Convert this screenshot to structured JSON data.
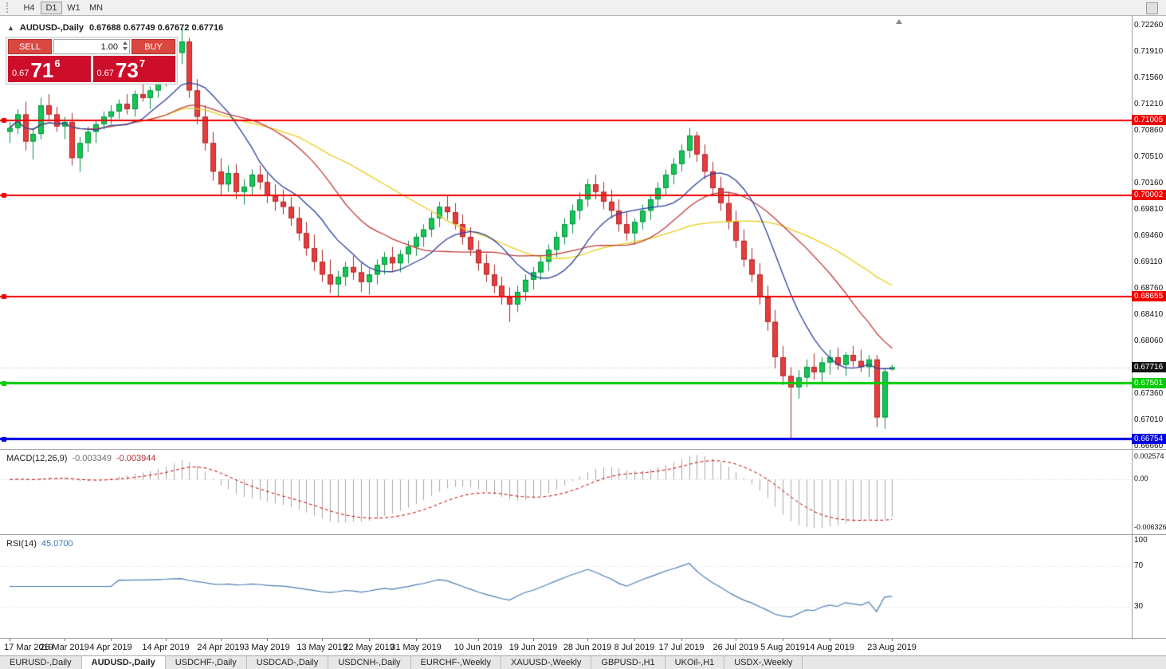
{
  "toolbar": {
    "timeframes": [
      "H4",
      "D1",
      "W1",
      "MN"
    ],
    "active": "D1"
  },
  "chart": {
    "header": {
      "collapse_icon": "▲",
      "symbol": "AUDUSD-,Daily",
      "ohlc": "0.67688 0.67749 0.67672 0.67716"
    },
    "trade_panel": {
      "sell_label": "SELL",
      "buy_label": "BUY",
      "volume": "1.00",
      "sell_price": {
        "small": "0.67",
        "big": "71",
        "sup": "6"
      },
      "buy_price": {
        "small": "0.67",
        "big": "73",
        "sup": "7"
      }
    },
    "view": {
      "price_top": 0.7238,
      "price_bottom": 0.6663
    },
    "price_scale": {
      "ticks": [
        "0.72260",
        "0.71910",
        "0.71560",
        "0.71210",
        "0.70860",
        "0.70510",
        "0.70160",
        "0.69810",
        "0.69460",
        "0.69110",
        "0.68760",
        "0.68410",
        "0.68060",
        "0.67360",
        "0.67010",
        "0.66660"
      ]
    },
    "hlines": [
      {
        "label": "0.71005",
        "price": 0.71005,
        "color": "#f00000",
        "text_color": "#ffffff",
        "width": 2
      },
      {
        "label": "0.70002",
        "price": 0.70002,
        "color": "#f00000",
        "text_color": "#ffffff",
        "width": 2
      },
      {
        "label": "0.68655",
        "price": 0.68655,
        "color": "#f00000",
        "text_color": "#ffffff",
        "width": 2
      },
      {
        "label": "0.67501",
        "price": 0.67501,
        "color": "#00cc00",
        "text_color": "#ffffff",
        "width": 3
      },
      {
        "label": "0.66754",
        "price": 0.66754,
        "color": "#0000e0",
        "text_color": "#ffffff",
        "width": 3
      }
    ],
    "current_price": {
      "value": "0.67716",
      "price": 0.67716,
      "bg": "#141414",
      "line_color": "#9a9a9a"
    }
  },
  "chart_data": {
    "type": "candlestick",
    "symbol": "AUDUSD",
    "timeframe": "Daily",
    "colors": {
      "up": "#12c753",
      "up_border": "#089040",
      "down": "#ea3b3c",
      "down_border": "#aa2a2b"
    },
    "moving_averages": [
      {
        "period": 34,
        "color": "#e9cd18"
      },
      {
        "period": 21,
        "color": "#c23b3b"
      },
      {
        "period": 10,
        "color": "#2b3f9e"
      }
    ],
    "candles": [
      [
        0.7085,
        0.7098,
        0.707,
        0.709
      ],
      [
        0.709,
        0.7115,
        0.7082,
        0.7108
      ],
      [
        0.7108,
        0.7125,
        0.706,
        0.7072
      ],
      [
        0.7072,
        0.709,
        0.7048,
        0.7082
      ],
      [
        0.7082,
        0.713,
        0.7075,
        0.712
      ],
      [
        0.712,
        0.7135,
        0.71,
        0.7108
      ],
      [
        0.7108,
        0.7118,
        0.7085,
        0.7092
      ],
      [
        0.7092,
        0.7105,
        0.7075,
        0.7098
      ],
      [
        0.7098,
        0.711,
        0.704,
        0.705
      ],
      [
        0.705,
        0.7078,
        0.7032,
        0.707
      ],
      [
        0.707,
        0.7092,
        0.7058,
        0.7085
      ],
      [
        0.7085,
        0.71,
        0.707,
        0.7095
      ],
      [
        0.7095,
        0.7112,
        0.7088,
        0.7105
      ],
      [
        0.7105,
        0.712,
        0.7095,
        0.7112
      ],
      [
        0.7112,
        0.7128,
        0.7102,
        0.7122
      ],
      [
        0.7122,
        0.7135,
        0.7108,
        0.7115
      ],
      [
        0.7115,
        0.714,
        0.7105,
        0.7135
      ],
      [
        0.7135,
        0.7155,
        0.7125,
        0.713
      ],
      [
        0.713,
        0.7145,
        0.7115,
        0.714
      ],
      [
        0.714,
        0.716,
        0.713,
        0.7155
      ],
      [
        0.7155,
        0.7175,
        0.7145,
        0.7168
      ],
      [
        0.7168,
        0.7195,
        0.716,
        0.719
      ],
      [
        0.719,
        0.7224,
        0.7175,
        0.7205
      ],
      [
        0.7205,
        0.721,
        0.713,
        0.714
      ],
      [
        0.714,
        0.7155,
        0.7095,
        0.7105
      ],
      [
        0.7105,
        0.712,
        0.706,
        0.707
      ],
      [
        0.707,
        0.7085,
        0.702,
        0.7032
      ],
      [
        0.7032,
        0.705,
        0.7,
        0.7015
      ],
      [
        0.7015,
        0.704,
        0.7005,
        0.703
      ],
      [
        0.703,
        0.7042,
        0.6995,
        0.7005
      ],
      [
        0.7005,
        0.7022,
        0.6988,
        0.7012
      ],
      [
        0.7012,
        0.7035,
        0.7,
        0.7028
      ],
      [
        0.7028,
        0.704,
        0.7008,
        0.7018
      ],
      [
        0.7018,
        0.703,
        0.699,
        0.7
      ],
      [
        0.7,
        0.7015,
        0.698,
        0.6992
      ],
      [
        0.6992,
        0.7008,
        0.6975,
        0.6985
      ],
      [
        0.6985,
        0.6998,
        0.696,
        0.697
      ],
      [
        0.697,
        0.6985,
        0.694,
        0.695
      ],
      [
        0.695,
        0.6965,
        0.692,
        0.693
      ],
      [
        0.693,
        0.6948,
        0.69,
        0.6912
      ],
      [
        0.6912,
        0.6928,
        0.6885,
        0.6895
      ],
      [
        0.6895,
        0.6915,
        0.687,
        0.6882
      ],
      [
        0.6882,
        0.69,
        0.6865,
        0.6892
      ],
      [
        0.6892,
        0.6912,
        0.688,
        0.6905
      ],
      [
        0.6905,
        0.692,
        0.6888,
        0.6898
      ],
      [
        0.6898,
        0.691,
        0.6872,
        0.6885
      ],
      [
        0.6885,
        0.6902,
        0.6868,
        0.6895
      ],
      [
        0.6895,
        0.6915,
        0.6882,
        0.6908
      ],
      [
        0.6908,
        0.6925,
        0.6895,
        0.6918
      ],
      [
        0.6918,
        0.6932,
        0.69,
        0.691
      ],
      [
        0.691,
        0.6928,
        0.6898,
        0.6922
      ],
      [
        0.6922,
        0.694,
        0.691,
        0.6932
      ],
      [
        0.6932,
        0.695,
        0.692,
        0.6945
      ],
      [
        0.6945,
        0.6962,
        0.6932,
        0.6955
      ],
      [
        0.6955,
        0.6978,
        0.6945,
        0.697
      ],
      [
        0.697,
        0.6992,
        0.6958,
        0.6985
      ],
      [
        0.6985,
        0.7,
        0.6968,
        0.6978
      ],
      [
        0.6978,
        0.699,
        0.6955,
        0.6962
      ],
      [
        0.6962,
        0.6975,
        0.6935,
        0.6945
      ],
      [
        0.6945,
        0.6958,
        0.692,
        0.6928
      ],
      [
        0.6928,
        0.694,
        0.69,
        0.691
      ],
      [
        0.691,
        0.6922,
        0.6885,
        0.6895
      ],
      [
        0.6895,
        0.6908,
        0.687,
        0.688
      ],
      [
        0.688,
        0.6892,
        0.6855,
        0.6865
      ],
      [
        0.6865,
        0.6878,
        0.6832,
        0.6855
      ],
      [
        0.6855,
        0.688,
        0.6845,
        0.6872
      ],
      [
        0.6872,
        0.6895,
        0.686,
        0.6888
      ],
      [
        0.6888,
        0.6905,
        0.6875,
        0.6898
      ],
      [
        0.6898,
        0.692,
        0.6888,
        0.6912
      ],
      [
        0.6912,
        0.6935,
        0.69,
        0.6928
      ],
      [
        0.6928,
        0.6952,
        0.6918,
        0.6945
      ],
      [
        0.6945,
        0.697,
        0.6935,
        0.6962
      ],
      [
        0.6962,
        0.6988,
        0.695,
        0.698
      ],
      [
        0.698,
        0.7005,
        0.6968,
        0.6995
      ],
      [
        0.6995,
        0.7022,
        0.6985,
        0.7015
      ],
      [
        0.7015,
        0.7028,
        0.6995,
        0.7005
      ],
      [
        0.7005,
        0.7018,
        0.6982,
        0.6992
      ],
      [
        0.6992,
        0.7008,
        0.697,
        0.698
      ],
      [
        0.698,
        0.6995,
        0.6952,
        0.6962
      ],
      [
        0.6962,
        0.6978,
        0.694,
        0.695
      ],
      [
        0.695,
        0.697,
        0.6935,
        0.6965
      ],
      [
        0.6965,
        0.6988,
        0.6955,
        0.698
      ],
      [
        0.698,
        0.7002,
        0.6968,
        0.6995
      ],
      [
        0.6995,
        0.7018,
        0.6985,
        0.701
      ],
      [
        0.701,
        0.7035,
        0.7,
        0.7028
      ],
      [
        0.7028,
        0.705,
        0.7015,
        0.7042
      ],
      [
        0.7042,
        0.7068,
        0.7032,
        0.706
      ],
      [
        0.706,
        0.709,
        0.705,
        0.708
      ],
      [
        0.708,
        0.7085,
        0.7045,
        0.7055
      ],
      [
        0.7055,
        0.7068,
        0.7022,
        0.7032
      ],
      [
        0.7032,
        0.7045,
        0.7,
        0.701
      ],
      [
        0.701,
        0.7025,
        0.698,
        0.699
      ],
      [
        0.699,
        0.7005,
        0.6955,
        0.6965
      ],
      [
        0.6965,
        0.698,
        0.693,
        0.694
      ],
      [
        0.694,
        0.6955,
        0.6905,
        0.6915
      ],
      [
        0.6915,
        0.693,
        0.6885,
        0.6895
      ],
      [
        0.6895,
        0.691,
        0.6855,
        0.6865
      ],
      [
        0.6865,
        0.688,
        0.682,
        0.6832
      ],
      [
        0.6832,
        0.6848,
        0.677,
        0.6785
      ],
      [
        0.6785,
        0.68,
        0.6748,
        0.676
      ],
      [
        0.676,
        0.6772,
        0.6677,
        0.6745
      ],
      [
        0.6745,
        0.6768,
        0.673,
        0.6758
      ],
      [
        0.6758,
        0.6782,
        0.6745,
        0.6772
      ],
      [
        0.6772,
        0.679,
        0.6755,
        0.6765
      ],
      [
        0.6765,
        0.6785,
        0.6752,
        0.6778
      ],
      [
        0.6778,
        0.6795,
        0.6762,
        0.6785
      ],
      [
        0.6785,
        0.6798,
        0.6768,
        0.6775
      ],
      [
        0.6775,
        0.6792,
        0.676,
        0.6788
      ],
      [
        0.6788,
        0.68,
        0.6772,
        0.678
      ],
      [
        0.678,
        0.6795,
        0.6765,
        0.6772
      ],
      [
        0.6772,
        0.6788,
        0.6758,
        0.6782
      ],
      [
        0.6782,
        0.6788,
        0.6692,
        0.6705
      ],
      [
        0.6705,
        0.677,
        0.669,
        0.6766
      ],
      [
        0.67688,
        0.67749,
        0.67672,
        0.67716
      ]
    ],
    "date_labels": [
      {
        "label": "17 Mar 2019",
        "bar": 0
      },
      {
        "label": "26 Mar 2019",
        "bar": 7
      },
      {
        "label": "4 Apr 2019",
        "bar": 13
      },
      {
        "label": "14 Apr 2019",
        "bar": 20
      },
      {
        "label": "24 Apr 2019",
        "bar": 27
      },
      {
        "label": "3 May 2019",
        "bar": 33
      },
      {
        "label": "13 May 2019",
        "bar": 40
      },
      {
        "label": "22 May 2019",
        "bar": 46
      },
      {
        "label": "31 May 2019",
        "bar": 52
      },
      {
        "label": "10 Jun 2019",
        "bar": 60
      },
      {
        "label": "19 Jun 2019",
        "bar": 67
      },
      {
        "label": "28 Jun 2019",
        "bar": 74
      },
      {
        "label": "8 Jul 2019",
        "bar": 80
      },
      {
        "label": "17 Jul 2019",
        "bar": 86
      },
      {
        "label": "26 Jul 2019",
        "bar": 93
      },
      {
        "label": "5 Aug 2019",
        "bar": 99
      },
      {
        "label": "14 Aug 2019",
        "bar": 105
      },
      {
        "label": "23 Aug 2019",
        "bar": 113
      }
    ]
  },
  "macd": {
    "name": "MACD(12,26,9)",
    "main_value": "-0.003349",
    "signal_value": "-0.003944",
    "fast": 12,
    "slow": 26,
    "signal": 9,
    "scale_top": "0.002574",
    "scale_zero": "0.00",
    "scale_bottom": "-0.006326",
    "histogram_color": "#a8a8a8",
    "signal_color": "#c00000"
  },
  "rsi": {
    "name": "RSI(14)",
    "value_text": "45.0700",
    "period": 14,
    "scale": [
      "100",
      "70",
      "30"
    ],
    "levels": [
      70,
      30
    ],
    "line_color": "#4a7ab5"
  },
  "tabs": [
    {
      "label": "EURUSD-,Daily",
      "active": false
    },
    {
      "label": "AUDUSD-,Daily",
      "active": true
    },
    {
      "label": "USDCHF-,Daily",
      "active": false
    },
    {
      "label": "USDCAD-,Daily",
      "active": false
    },
    {
      "label": "USDCNH-,Daily",
      "active": false
    },
    {
      "label": "EURCHF-,Weekly",
      "active": false
    },
    {
      "label": "XAUUSD-,Weekly",
      "active": false
    },
    {
      "label": "GBPUSD-,H1",
      "active": false
    },
    {
      "label": "UKOil-,H1",
      "active": false
    },
    {
      "label": "USDX-,Weekly",
      "active": false
    }
  ]
}
